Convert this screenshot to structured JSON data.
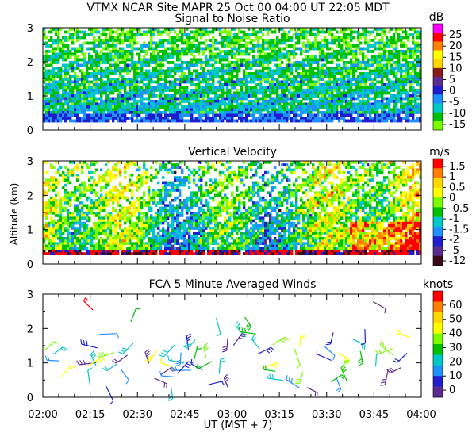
{
  "header": {
    "title": "VTMX   NCAR Site   MAPR 25 Oct 00   04:00 UT   22:05   MDT"
  },
  "y_axis_label": "Altitude (km)",
  "chart_data": [
    {
      "type": "heatmap",
      "title": "Signal to Noise Ratio",
      "unit": "dB",
      "ylim": [
        0,
        3
      ],
      "yticks": [
        "0",
        "1",
        "2",
        "3"
      ],
      "xlim_minutes": [
        0,
        120
      ],
      "data_range_km": [
        0.3,
        3.0
      ],
      "colorbar": {
        "labels": [
          "25",
          "20",
          "15",
          "10",
          "5",
          "0",
          "-5",
          "-10",
          "-15"
        ],
        "colors": [
          "#ff00ff",
          "#ff0000",
          "#ff7f00",
          "#ffff00",
          "#ffd700",
          "#8b1a1a",
          "#5b2c8f",
          "#1e1ecf",
          "#1e90ff",
          "#00c8c8",
          "#00c000",
          "#7cfc00"
        ]
      }
    },
    {
      "type": "heatmap",
      "title": "Vertical Velocity",
      "unit": "m/s",
      "ylim": [
        0,
        3
      ],
      "yticks": [
        "0",
        "1",
        "2",
        "3"
      ],
      "xlim_minutes": [
        0,
        120
      ],
      "data_range_km": [
        0.3,
        3.0
      ],
      "colorbar": {
        "labels": [
          "1.5",
          "1",
          "0.5",
          "0",
          "-0.5",
          "-1",
          "-1.5",
          "-2",
          "-5",
          "-12"
        ],
        "colors": [
          "#ff0000",
          "#ff7f00",
          "#ffd700",
          "#ffff00",
          "#7cfc00",
          "#00c000",
          "#00c8c8",
          "#1e90ff",
          "#1e1ecf",
          "#5b2c8f",
          "#3a0a1a"
        ]
      }
    },
    {
      "type": "scatter",
      "title": "FCA 5 Minute Averaged Winds",
      "unit": "knots",
      "ylim": [
        0,
        3
      ],
      "yticks": [
        "0",
        "1",
        "2",
        "3"
      ],
      "xlim_minutes": [
        0,
        120
      ],
      "colorbar": {
        "labels": [
          "60",
          "50",
          "40",
          "30",
          "20",
          "10",
          "0"
        ],
        "colors": [
          "#ff0000",
          "#ff7f00",
          "#ffd700",
          "#ffff00",
          "#7cfc00",
          "#00c000",
          "#00c8c8",
          "#1e90ff",
          "#1e1ecf",
          "#5b2c8f"
        ]
      }
    }
  ],
  "x_axis": {
    "label": "UT  (MST + 7)",
    "tick_labels": [
      "02:00",
      "02:15",
      "02:30",
      "02:45",
      "03:00",
      "03:15",
      "03:30",
      "03:45",
      "04:00"
    ]
  }
}
